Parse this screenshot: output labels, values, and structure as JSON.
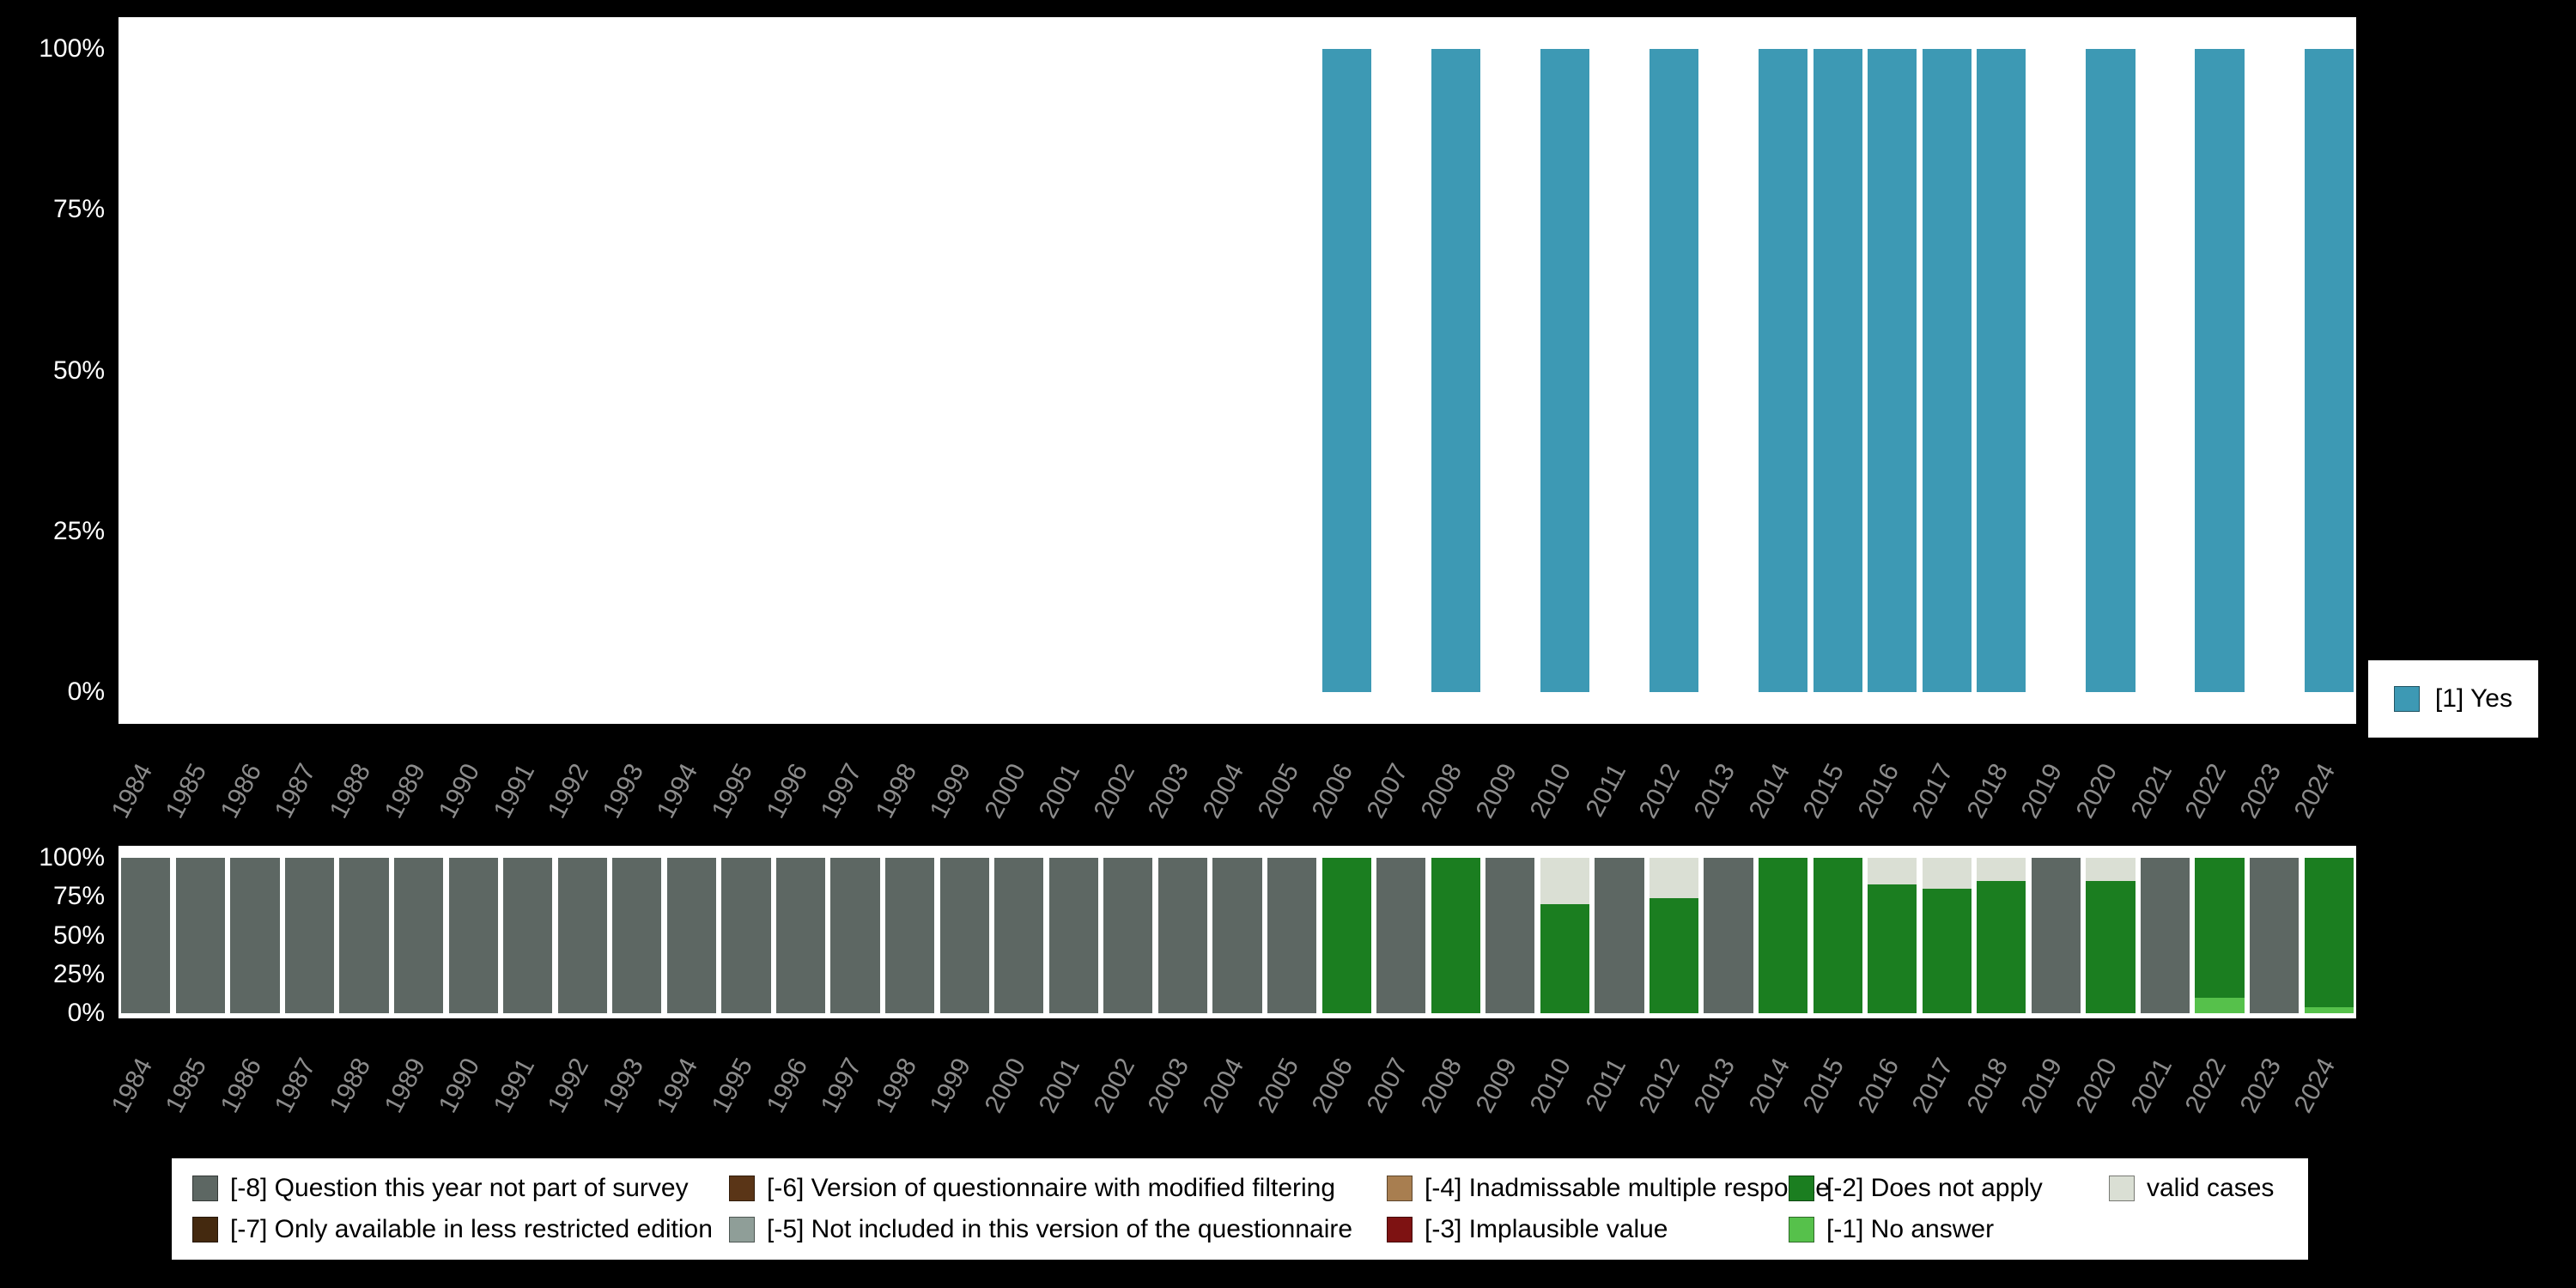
{
  "colors": {
    "background": "#000000",
    "plot_background": "#ffffff",
    "axis_text": "#ffffff",
    "year_text": "#8c8c8c",
    "yes": "#3d99b4",
    "categories": {
      "-8": "#5d6763",
      "-7": "#44290f",
      "-6": "#5a3517",
      "-5": "#8f9e98",
      "-4": "#a87e50",
      "-3": "#7e1212",
      "-2": "#1b7e20",
      "-1": "#56c14b",
      "valid": "#dadfd4"
    }
  },
  "chart_data": [
    {
      "type": "bar",
      "title": "",
      "xlabel": "",
      "ylabel": "",
      "ylim": [
        0,
        100
      ],
      "yticks": [
        "100%",
        "75%",
        "50%",
        "25%",
        "0%"
      ],
      "legend_position": "right",
      "categories": [
        1984,
        1985,
        1986,
        1987,
        1988,
        1989,
        1990,
        1991,
        1992,
        1993,
        1994,
        1995,
        1996,
        1997,
        1998,
        1999,
        2000,
        2001,
        2002,
        2003,
        2004,
        2005,
        2006,
        2007,
        2008,
        2009,
        2010,
        2011,
        2012,
        2013,
        2014,
        2015,
        2016,
        2017,
        2018,
        2019,
        2020,
        2021,
        2022,
        2023,
        2024
      ],
      "series": [
        {
          "name": "[1] Yes",
          "values": [
            0,
            0,
            0,
            0,
            0,
            0,
            0,
            0,
            0,
            0,
            0,
            0,
            0,
            0,
            0,
            0,
            0,
            0,
            0,
            0,
            0,
            0,
            100,
            0,
            100,
            0,
            100,
            0,
            100,
            0,
            100,
            100,
            100,
            100,
            100,
            0,
            100,
            0,
            100,
            0,
            100
          ]
        }
      ]
    },
    {
      "type": "stacked-bar",
      "title": "",
      "xlabel": "",
      "ylabel": "",
      "ylim": [
        0,
        100
      ],
      "yticks": [
        "100%",
        "75%",
        "50%",
        "25%",
        "0%"
      ],
      "legend_position": "bottom",
      "categories": [
        1984,
        1985,
        1986,
        1987,
        1988,
        1989,
        1990,
        1991,
        1992,
        1993,
        1994,
        1995,
        1996,
        1997,
        1998,
        1999,
        2000,
        2001,
        2002,
        2003,
        2004,
        2005,
        2006,
        2007,
        2008,
        2009,
        2010,
        2011,
        2012,
        2013,
        2014,
        2015,
        2016,
        2017,
        2018,
        2019,
        2020,
        2021,
        2022,
        2023,
        2024
      ],
      "stacks": [
        [
          [
            "-8",
            100
          ]
        ],
        [
          [
            "-8",
            100
          ]
        ],
        [
          [
            "-8",
            100
          ]
        ],
        [
          [
            "-8",
            100
          ]
        ],
        [
          [
            "-8",
            100
          ]
        ],
        [
          [
            "-8",
            100
          ]
        ],
        [
          [
            "-8",
            100
          ]
        ],
        [
          [
            "-8",
            100
          ]
        ],
        [
          [
            "-8",
            100
          ]
        ],
        [
          [
            "-8",
            100
          ]
        ],
        [
          [
            "-8",
            100
          ]
        ],
        [
          [
            "-8",
            100
          ]
        ],
        [
          [
            "-8",
            100
          ]
        ],
        [
          [
            "-8",
            100
          ]
        ],
        [
          [
            "-8",
            100
          ]
        ],
        [
          [
            "-8",
            100
          ]
        ],
        [
          [
            "-8",
            100
          ]
        ],
        [
          [
            "-8",
            100
          ]
        ],
        [
          [
            "-8",
            100
          ]
        ],
        [
          [
            "-8",
            100
          ]
        ],
        [
          [
            "-8",
            100
          ]
        ],
        [
          [
            "-8",
            100
          ]
        ],
        [
          [
            "-2",
            100
          ]
        ],
        [
          [
            "-8",
            100
          ]
        ],
        [
          [
            "-2",
            100
          ]
        ],
        [
          [
            "-8",
            100
          ]
        ],
        [
          [
            "-2",
            70
          ],
          [
            "valid",
            30
          ]
        ],
        [
          [
            "-8",
            100
          ]
        ],
        [
          [
            "-2",
            74
          ],
          [
            "valid",
            26
          ]
        ],
        [
          [
            "-8",
            100
          ]
        ],
        [
          [
            "-2",
            100
          ]
        ],
        [
          [
            "-2",
            100
          ]
        ],
        [
          [
            "-2",
            83
          ],
          [
            "valid",
            17
          ]
        ],
        [
          [
            "-2",
            80
          ],
          [
            "valid",
            20
          ]
        ],
        [
          [
            "-2",
            85
          ],
          [
            "valid",
            15
          ]
        ],
        [
          [
            "-8",
            100
          ]
        ],
        [
          [
            "-2",
            85
          ],
          [
            "valid",
            15
          ]
        ],
        [
          [
            "-8",
            100
          ]
        ],
        [
          [
            "-1",
            10
          ],
          [
            "-2",
            90
          ]
        ],
        [
          [
            "-8",
            100
          ]
        ],
        [
          [
            "-1",
            4
          ],
          [
            "-2",
            96
          ]
        ]
      ]
    }
  ],
  "legend_right": {
    "label": "[1] Yes"
  },
  "legend_bottom": {
    "rows": [
      [
        {
          "key": "-8",
          "label": "[-8] Question this year not part of survey"
        },
        {
          "key": "-6",
          "label": "[-6] Version of questionnaire with modified filtering"
        },
        {
          "key": "-4",
          "label": "[-4] Inadmissable multiple response"
        },
        {
          "key": "-2",
          "label": "[-2] Does not apply"
        },
        {
          "key": "valid",
          "label": "valid cases"
        }
      ],
      [
        {
          "key": "-7",
          "label": "[-7] Only available in less restricted edition"
        },
        {
          "key": "-5",
          "label": "[-5] Not included in this version of the questionnaire"
        },
        {
          "key": "-3",
          "label": "[-3] Implausible value"
        },
        {
          "key": "-1",
          "label": "[-1] No answer"
        }
      ]
    ]
  }
}
